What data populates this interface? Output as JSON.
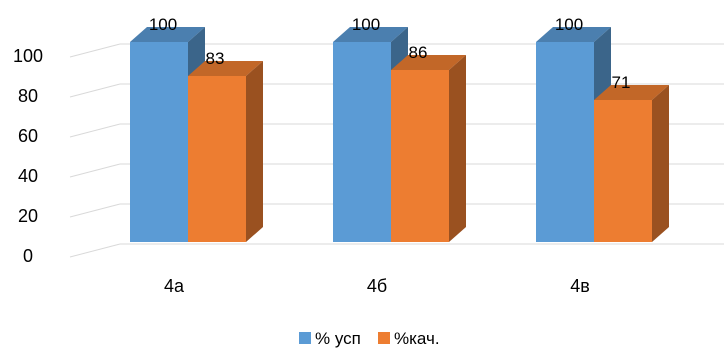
{
  "chart_data": {
    "type": "bar",
    "categories": [
      "4а",
      "4б",
      "4в"
    ],
    "series": [
      {
        "name": "% усп",
        "values": [
          100,
          100,
          100
        ],
        "color": "#5B9BD5"
      },
      {
        "name": "%кач.",
        "values": [
          83,
          86,
          71
        ],
        "color": "#ED7D31"
      }
    ],
    "data_labels": [
      [
        "100",
        "100",
        "100"
      ],
      [
        "83",
        "86",
        "71"
      ]
    ],
    "ylim": [
      0,
      100
    ],
    "yticks": [
      0,
      20,
      40,
      60,
      80,
      100
    ],
    "grid": true,
    "style": "3d-column",
    "legend_position": "bottom",
    "title": "",
    "xlabel": "",
    "ylabel": ""
  }
}
